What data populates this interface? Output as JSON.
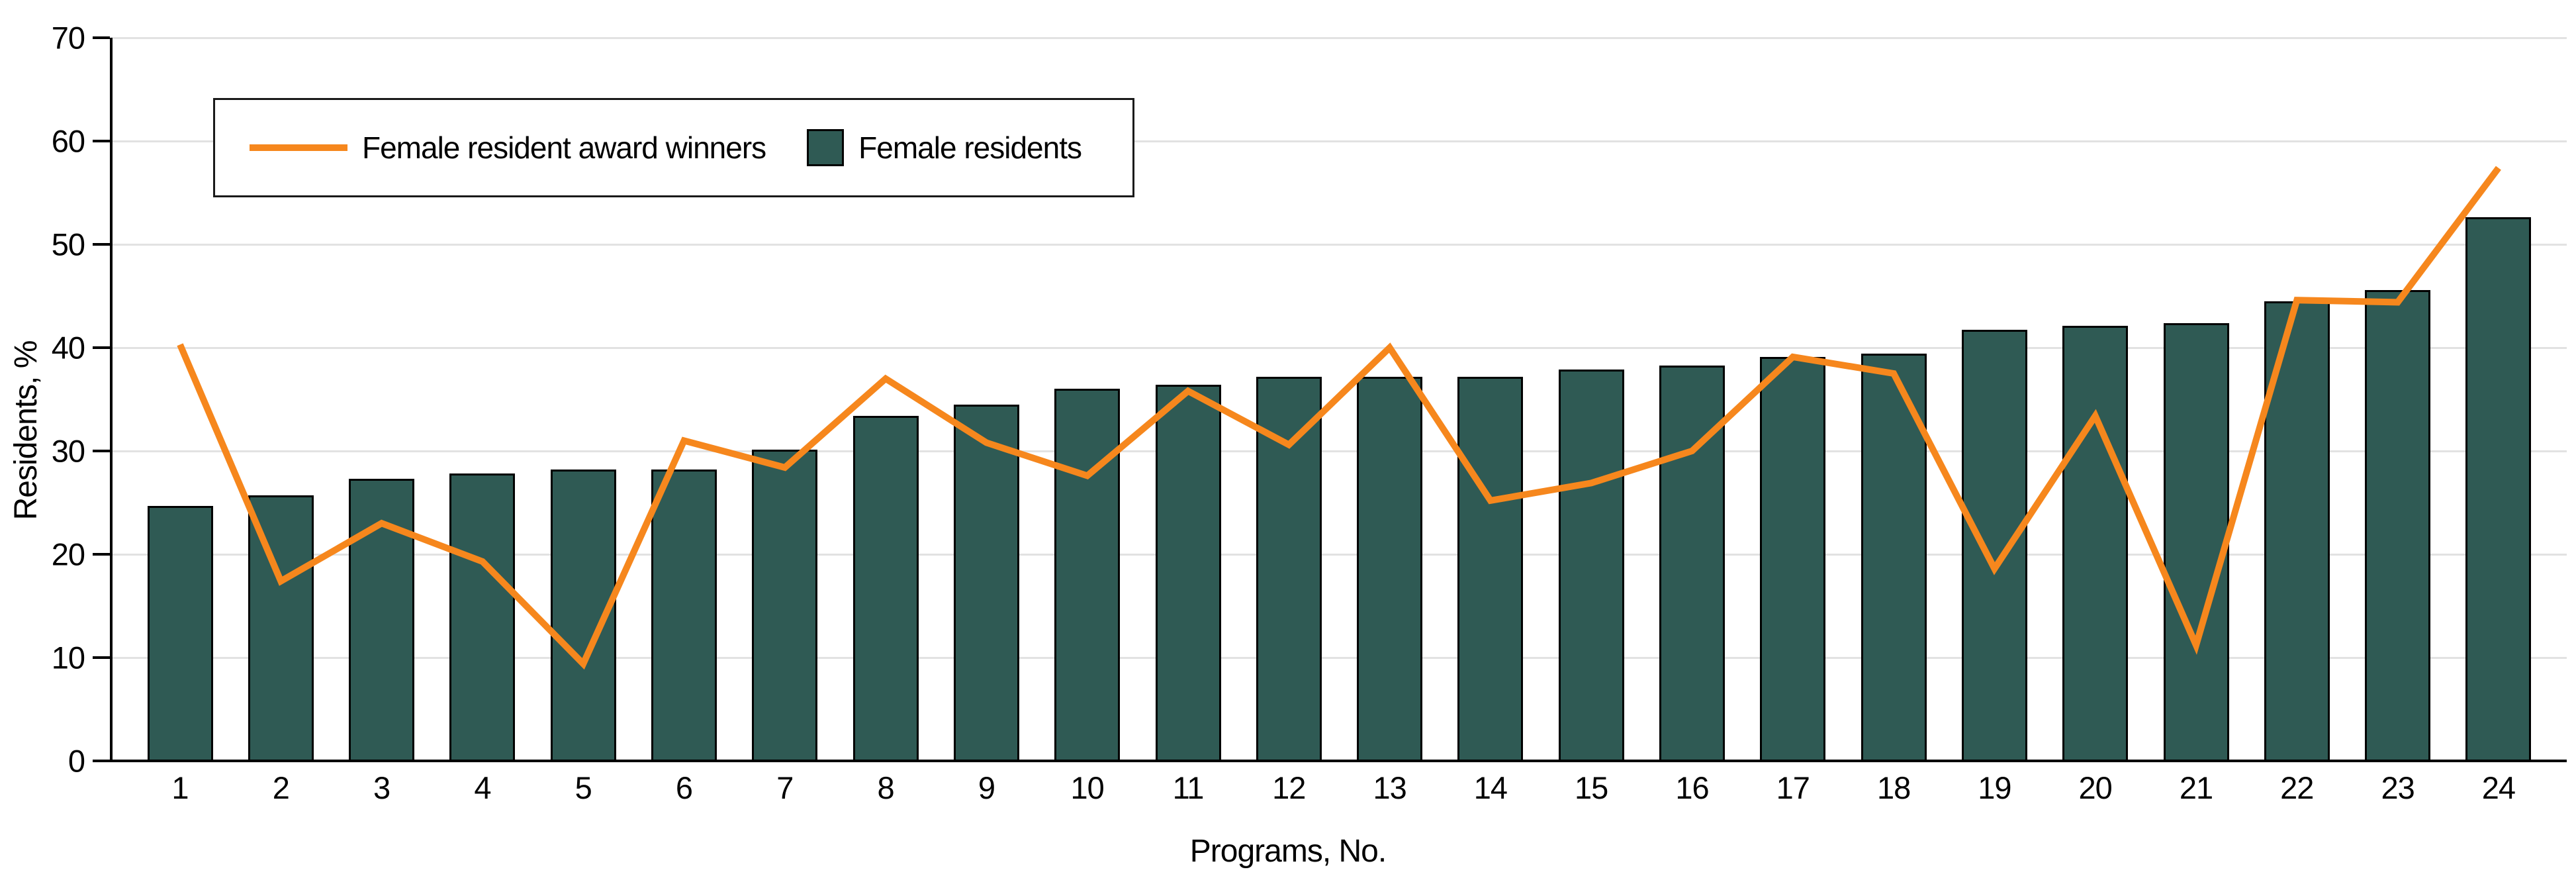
{
  "figure": {
    "background": "#ffffff"
  },
  "axes": {
    "x_title": "Programs, No.",
    "y_title": "Residents, %"
  },
  "legend": {
    "items": [
      {
        "label": "Female resident award winners",
        "swatch": "line",
        "color": "#F6871D"
      },
      {
        "label": "Female residents",
        "swatch": "rect",
        "color": "#2F5A54"
      }
    ]
  },
  "chart_data": {
    "type": "bar",
    "title": "",
    "xlabel": "Programs, No.",
    "ylabel": "Residents, %",
    "categories": [
      "1",
      "2",
      "3",
      "4",
      "5",
      "6",
      "7",
      "8",
      "9",
      "10",
      "11",
      "12",
      "13",
      "14",
      "15",
      "16",
      "17",
      "18",
      "19",
      "20",
      "21",
      "22",
      "23",
      "24"
    ],
    "series": [
      {
        "name": "Female residents",
        "type": "bar",
        "color": "#2F5A54",
        "border_color": "#000000",
        "values": [
          24.7,
          25.7,
          27.3,
          27.8,
          28.2,
          28.2,
          30.1,
          33.4,
          34.5,
          36.0,
          36.4,
          37.2,
          37.2,
          37.2,
          37.9,
          38.3,
          39.1,
          39.4,
          41.7,
          42.1,
          42.4,
          44.5,
          45.6,
          52.6
        ]
      },
      {
        "name": "Female resident award winners",
        "type": "line",
        "color": "#F6871D",
        "values": [
          40.3,
          17.4,
          23.0,
          19.3,
          9.4,
          31.0,
          28.4,
          37.0,
          30.8,
          27.6,
          35.8,
          30.6,
          40.0,
          25.2,
          26.9,
          30.0,
          39.1,
          37.5,
          18.6,
          33.4,
          11.2,
          44.6,
          44.4,
          57.4
        ]
      }
    ],
    "ylim": [
      0,
      70
    ],
    "yticks": [
      0,
      10,
      20,
      30,
      40,
      50,
      60,
      70
    ],
    "grid": "horizontal",
    "gridline_color": "#E2E2E2",
    "legend_position": "top-left"
  }
}
